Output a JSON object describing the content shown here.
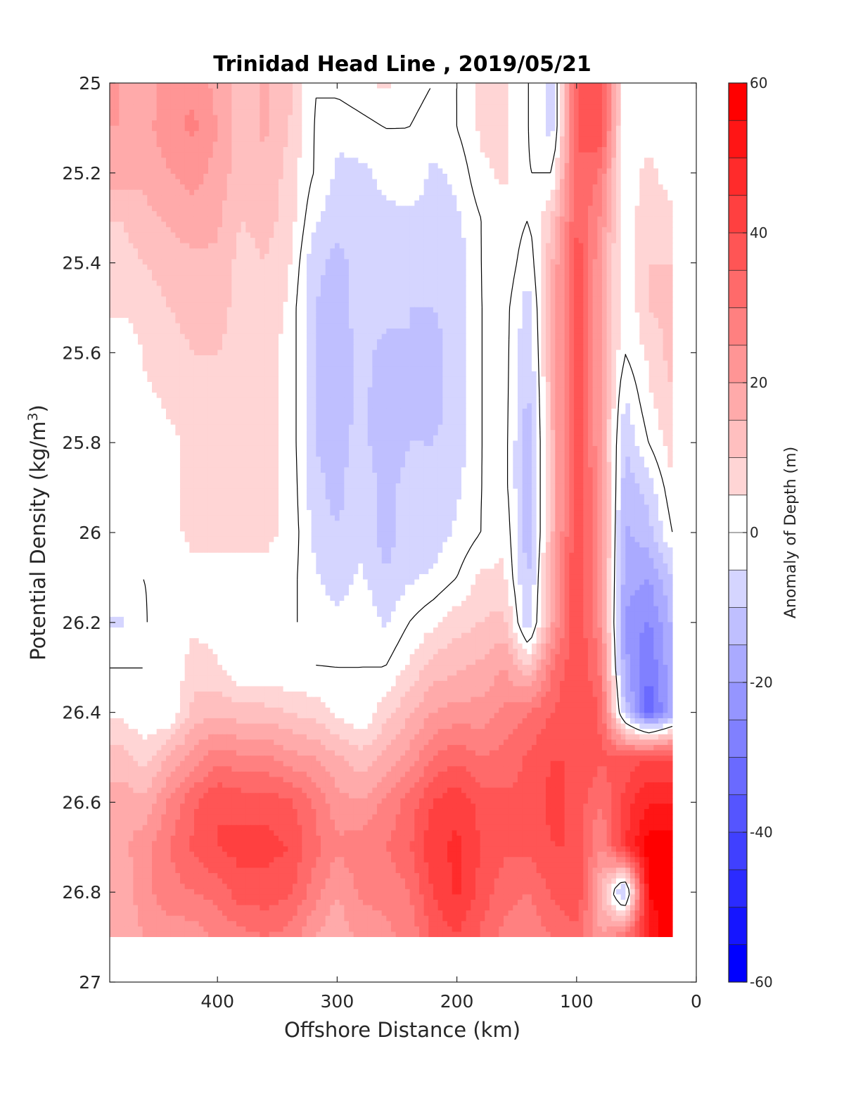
{
  "chart_data": {
    "type": "heatmap",
    "subtype": "filled-contour",
    "title": "Trinidad Head Line , 2019/05/21",
    "xlabel": "Offshore Distance (km)",
    "ylabel_main": "Potential Density (kg/m",
    "ylabel_sup": "3",
    "ylabel_end": ")",
    "xlim": [
      490,
      0
    ],
    "x_reversed": true,
    "ylim": [
      25,
      27
    ],
    "y_reversed": true,
    "xticks": [
      400,
      300,
      200,
      100,
      0
    ],
    "yticks": [
      25,
      25.2,
      25.4,
      25.6,
      25.8,
      26,
      26.2,
      26.4,
      26.6,
      26.8,
      27
    ],
    "colorbar": {
      "label": "Anomaly of Depth (m)",
      "range": [
        -60,
        60
      ],
      "ticks": [
        60,
        40,
        20,
        0,
        -20,
        -40,
        -60
      ],
      "level_step": 5,
      "colormap": "blue-white-red",
      "low_color": "#0000ff",
      "mid_color": "#ffffff",
      "high_color": "#ff0000"
    },
    "data_density_max": 26.9,
    "x_grid": [
      480,
      460,
      440,
      420,
      400,
      380,
      360,
      340,
      320,
      300,
      280,
      260,
      240,
      220,
      200,
      180,
      160,
      140,
      120,
      100,
      80,
      60,
      40,
      20
    ],
    "y_grid": [
      25.0,
      25.1,
      25.2,
      25.3,
      25.4,
      25.5,
      25.6,
      25.7,
      25.8,
      25.9,
      26.0,
      26.1,
      26.2,
      26.3,
      26.4,
      26.5,
      26.6,
      26.7,
      26.8,
      26.9
    ],
    "z": [
      [
        20,
        18,
        22,
        24,
        18,
        12,
        16,
        12,
        0,
        2,
        4,
        6,
        2,
        0,
        0,
        6,
        6,
        0,
        -8,
        35,
        40,
        0,
        0,
        0
      ],
      [
        20,
        18,
        24,
        26,
        20,
        12,
        16,
        10,
        0,
        -4,
        -2,
        0,
        0,
        -2,
        0,
        6,
        6,
        0,
        -8,
        35,
        40,
        0,
        0,
        0
      ],
      [
        18,
        16,
        20,
        22,
        18,
        12,
        14,
        8,
        0,
        -6,
        -6,
        -4,
        -2,
        -6,
        -4,
        4,
        6,
        0,
        0,
        35,
        30,
        0,
        8,
        0
      ],
      [
        10,
        14,
        16,
        18,
        16,
        10,
        12,
        8,
        -4,
        -8,
        -6,
        -6,
        -6,
        -6,
        -6,
        0,
        4,
        0,
        10,
        35,
        25,
        0,
        10,
        8
      ],
      [
        8,
        10,
        12,
        14,
        14,
        8,
        10,
        6,
        -8,
        -12,
        -8,
        -6,
        -8,
        -8,
        -8,
        0,
        4,
        -4,
        15,
        40,
        20,
        0,
        10,
        10
      ],
      [
        6,
        8,
        10,
        12,
        12,
        8,
        8,
        4,
        -10,
        -12,
        -8,
        -8,
        -10,
        -10,
        -8,
        0,
        2,
        -8,
        15,
        40,
        20,
        0,
        10,
        12
      ],
      [
        0,
        6,
        8,
        10,
        10,
        8,
        6,
        4,
        -10,
        -14,
        -8,
        -12,
        -10,
        -12,
        -8,
        0,
        2,
        -10,
        15,
        40,
        20,
        0,
        6,
        12
      ],
      [
        0,
        4,
        6,
        8,
        8,
        6,
        6,
        4,
        -10,
        -14,
        -8,
        -14,
        -10,
        -12,
        -8,
        0,
        2,
        -12,
        15,
        40,
        20,
        -6,
        4,
        10
      ],
      [
        0,
        2,
        4,
        6,
        6,
        6,
        6,
        4,
        -10,
        -12,
        -8,
        -14,
        -10,
        -10,
        -8,
        0,
        2,
        -14,
        15,
        40,
        20,
        -10,
        0,
        8
      ],
      [
        0,
        0,
        4,
        6,
        6,
        6,
        6,
        4,
        -8,
        -12,
        -6,
        -12,
        -8,
        -10,
        -6,
        0,
        2,
        -14,
        15,
        40,
        25,
        -14,
        -8,
        4
      ],
      [
        0,
        0,
        4,
        6,
        6,
        6,
        6,
        4,
        -6,
        -10,
        -6,
        -12,
        -8,
        -8,
        -4,
        0,
        4,
        -14,
        15,
        40,
        25,
        -16,
        -12,
        0
      ],
      [
        0,
        0,
        2,
        4,
        4,
        4,
        4,
        2,
        -4,
        -8,
        -4,
        -10,
        -6,
        -4,
        0,
        6,
        6,
        -12,
        18,
        40,
        25,
        -18,
        -20,
        -10
      ],
      [
        -6,
        0,
        0,
        4,
        2,
        2,
        2,
        0,
        0,
        -4,
        0,
        -6,
        0,
        4,
        8,
        10,
        12,
        -10,
        20,
        40,
        25,
        -20,
        -26,
        -14
      ],
      [
        0,
        0,
        0,
        8,
        6,
        0,
        0,
        0,
        0,
        0,
        0,
        0,
        6,
        12,
        14,
        16,
        20,
        10,
        30,
        40,
        30,
        -18,
        -30,
        -16
      ],
      [
        4,
        0,
        0,
        12,
        14,
        12,
        12,
        10,
        8,
        4,
        0,
        8,
        14,
        20,
        22,
        22,
        26,
        30,
        35,
        40,
        35,
        -10,
        -34,
        -18
      ],
      [
        12,
        8,
        16,
        22,
        28,
        26,
        26,
        22,
        20,
        16,
        12,
        16,
        22,
        30,
        34,
        30,
        32,
        36,
        40,
        40,
        36,
        36,
        40,
        40
      ],
      [
        18,
        16,
        26,
        34,
        40,
        38,
        38,
        36,
        30,
        22,
        20,
        26,
        32,
        40,
        44,
        38,
        36,
        36,
        42,
        38,
        30,
        42,
        50,
        50
      ],
      [
        18,
        24,
        30,
        36,
        40,
        42,
        42,
        40,
        32,
        26,
        28,
        30,
        34,
        44,
        46,
        40,
        36,
        36,
        40,
        40,
        24,
        44,
        58,
        58
      ],
      [
        16,
        24,
        28,
        30,
        32,
        38,
        38,
        36,
        28,
        20,
        26,
        26,
        30,
        40,
        46,
        38,
        32,
        30,
        36,
        40,
        16,
        -16,
        55,
        60
      ],
      [
        16,
        20,
        22,
        22,
        26,
        28,
        30,
        28,
        20,
        16,
        22,
        24,
        26,
        36,
        40,
        34,
        28,
        26,
        30,
        34,
        20,
        30,
        50,
        60
      ]
    ],
    "contour_level": 0,
    "annotations": []
  }
}
